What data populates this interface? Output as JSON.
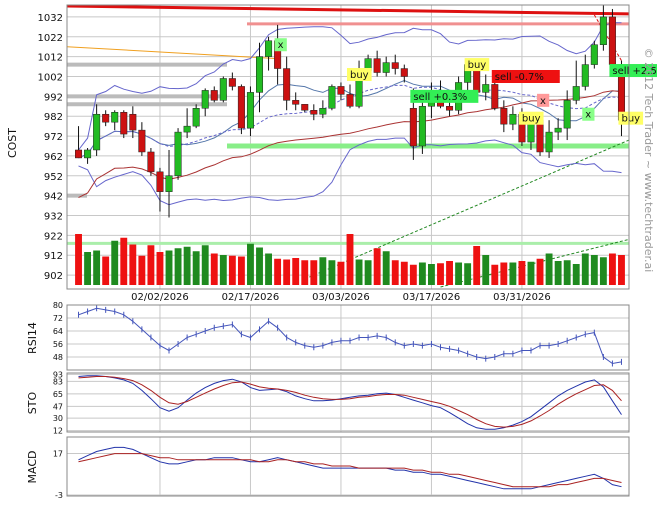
{
  "watermark": "© 2012 Tech Trader ~ www.techtrader.ai",
  "colors": {
    "up": "#22bb22",
    "down": "#cc1111",
    "grid": "#c8c8c8",
    "resistance": "#dd1111",
    "support": "#55dd55",
    "bollinger": "#6666cc",
    "ma_fast": "#5577aa",
    "ma_slow": "#aa3333",
    "trend_up": "#228822",
    "buy_bg": "#ffff66",
    "sell_bg_green": "#33ee55",
    "sell_bg_red": "#ee1111"
  },
  "chart_data": [
    {
      "panel": "price",
      "type": "candlestick",
      "ylabel": "COST",
      "yticks": [
        1032,
        1022,
        1012,
        1002,
        992,
        982,
        972,
        962,
        952,
        942,
        932,
        922,
        912,
        902
      ],
      "ylim": [
        895,
        1038
      ],
      "xticks": [
        "02/02/2026",
        "02/17/2026",
        "03/03/2026",
        "03/17/2026",
        "03/31/2026"
      ],
      "xtick_index": [
        9,
        19,
        29,
        39,
        49
      ],
      "n_bars": 61,
      "candles": [
        {
          "o": 965,
          "h": 977,
          "l": 961,
          "c": 961
        },
        {
          "o": 961,
          "h": 966,
          "l": 958,
          "c": 965
        },
        {
          "o": 965,
          "h": 988,
          "l": 962,
          "c": 983
        },
        {
          "o": 983,
          "h": 985,
          "l": 977,
          "c": 979
        },
        {
          "o": 979,
          "h": 985,
          "l": 975,
          "c": 984
        },
        {
          "o": 984,
          "h": 985,
          "l": 971,
          "c": 973
        },
        {
          "o": 983,
          "h": 987,
          "l": 971,
          "c": 975
        },
        {
          "o": 975,
          "h": 979,
          "l": 962,
          "c": 964
        },
        {
          "o": 964,
          "h": 966,
          "l": 952,
          "c": 954
        },
        {
          "o": 954,
          "h": 956,
          "l": 934,
          "c": 944
        },
        {
          "o": 944,
          "h": 965,
          "l": 931,
          "c": 952
        },
        {
          "o": 952,
          "h": 976,
          "l": 950,
          "c": 974
        },
        {
          "o": 974,
          "h": 986,
          "l": 971,
          "c": 977
        },
        {
          "o": 977,
          "h": 988,
          "l": 976,
          "c": 986
        },
        {
          "o": 986,
          "h": 996,
          "l": 982,
          "c": 995
        },
        {
          "o": 995,
          "h": 997,
          "l": 989,
          "c": 990
        },
        {
          "o": 990,
          "h": 1002,
          "l": 989,
          "c": 1001
        },
        {
          "o": 1001,
          "h": 1004,
          "l": 995,
          "c": 997
        },
        {
          "o": 997,
          "h": 998,
          "l": 973,
          "c": 976
        },
        {
          "o": 976,
          "h": 997,
          "l": 972,
          "c": 994
        },
        {
          "o": 994,
          "h": 1019,
          "l": 984,
          "c": 1012
        },
        {
          "o": 1012,
          "h": 1022,
          "l": 1005,
          "c": 1020
        },
        {
          "o": 1020,
          "h": 1028,
          "l": 998,
          "c": 1006
        },
        {
          "o": 1006,
          "h": 1012,
          "l": 985,
          "c": 990
        },
        {
          "o": 990,
          "h": 994,
          "l": 985,
          "c": 988
        },
        {
          "o": 988,
          "h": 988,
          "l": 984,
          "c": 985
        },
        {
          "o": 985,
          "h": 988,
          "l": 980,
          "c": 983
        },
        {
          "o": 983,
          "h": 990,
          "l": 981,
          "c": 986
        },
        {
          "o": 986,
          "h": 998,
          "l": 985,
          "c": 997
        },
        {
          "o": 997,
          "h": 999,
          "l": 990,
          "c": 993
        },
        {
          "o": 993,
          "h": 998,
          "l": 986,
          "c": 987
        },
        {
          "o": 987,
          "h": 1010,
          "l": 986,
          "c": 1005
        },
        {
          "o": 1005,
          "h": 1013,
          "l": 1000,
          "c": 1011
        },
        {
          "o": 1011,
          "h": 1015,
          "l": 1002,
          "c": 1004
        },
        {
          "o": 1004,
          "h": 1012,
          "l": 1002,
          "c": 1009
        },
        {
          "o": 1009,
          "h": 1013,
          "l": 1003,
          "c": 1006
        },
        {
          "o": 1006,
          "h": 1008,
          "l": 999,
          "c": 1002
        },
        {
          "o": 986,
          "h": 996,
          "l": 960,
          "c": 967
        },
        {
          "o": 967,
          "h": 990,
          "l": 963,
          "c": 987
        },
        {
          "o": 987,
          "h": 999,
          "l": 981,
          "c": 993
        },
        {
          "o": 993,
          "h": 1000,
          "l": 986,
          "c": 987
        },
        {
          "o": 987,
          "h": 992,
          "l": 982,
          "c": 985
        },
        {
          "o": 985,
          "h": 1002,
          "l": 983,
          "c": 999
        },
        {
          "o": 999,
          "h": 1011,
          "l": 993,
          "c": 1008
        },
        {
          "o": 1008,
          "h": 1009,
          "l": 993,
          "c": 994
        },
        {
          "o": 994,
          "h": 1003,
          "l": 990,
          "c": 998
        },
        {
          "o": 998,
          "h": 1001,
          "l": 985,
          "c": 986
        },
        {
          "o": 986,
          "h": 990,
          "l": 974,
          "c": 978
        },
        {
          "o": 978,
          "h": 987,
          "l": 975,
          "c": 983
        },
        {
          "o": 983,
          "h": 986,
          "l": 967,
          "c": 969
        },
        {
          "o": 969,
          "h": 984,
          "l": 965,
          "c": 980
        },
        {
          "o": 980,
          "h": 980,
          "l": 962,
          "c": 964
        },
        {
          "o": 964,
          "h": 980,
          "l": 961,
          "c": 974
        },
        {
          "o": 974,
          "h": 981,
          "l": 970,
          "c": 976
        },
        {
          "o": 976,
          "h": 995,
          "l": 970,
          "c": 990
        },
        {
          "o": 990,
          "h": 1010,
          "l": 988,
          "c": 997
        },
        {
          "o": 997,
          "h": 1013,
          "l": 995,
          "c": 1008
        },
        {
          "o": 1008,
          "h": 1020,
          "l": 1006,
          "c": 1018
        },
        {
          "o": 1018,
          "h": 1038,
          "l": 1015,
          "c": 1032
        },
        {
          "o": 1032,
          "h": 1036,
          "l": 1003,
          "c": 1008
        },
        {
          "o": 1008,
          "h": 1010,
          "l": 972,
          "c": 980
        }
      ],
      "volume_relative": [
        0.68,
        0.44,
        0.46,
        0.38,
        0.59,
        0.63,
        0.54,
        0.39,
        0.53,
        0.44,
        0.46,
        0.49,
        0.51,
        0.45,
        0.53,
        0.42,
        0.4,
        0.39,
        0.38,
        0.55,
        0.5,
        0.42,
        0.35,
        0.34,
        0.36,
        0.33,
        0.33,
        0.37,
        0.33,
        0.31,
        0.68,
        0.34,
        0.33,
        0.49,
        0.45,
        0.33,
        0.31,
        0.27,
        0.3,
        0.28,
        0.29,
        0.32,
        0.3,
        0.29,
        0.52,
        0.4,
        0.27,
        0.3,
        0.3,
        0.32,
        0.31,
        0.35,
        0.42,
        0.32,
        0.33,
        0.28,
        0.42,
        0.4,
        0.37,
        0.42,
        0.4
      ],
      "signals": [
        {
          "text": "x",
          "bar": 22,
          "price": 1018,
          "bg": "#88ff88"
        },
        {
          "text": "buy",
          "bar": 30,
          "price": 1003,
          "bg": "#ffff66"
        },
        {
          "text": "sell +0.3%",
          "bar": 37,
          "price": 992,
          "bg": "#33ee55"
        },
        {
          "text": "buy",
          "bar": 43,
          "price": 1008,
          "bg": "#ffff66"
        },
        {
          "text": "sell -0.7%",
          "bar": 46,
          "price": 1002,
          "bg": "#ee1111"
        },
        {
          "text": "buy",
          "bar": 49,
          "price": 981,
          "bg": "#ffff66"
        },
        {
          "text": "x",
          "bar": 51,
          "price": 990,
          "bg": "#ff9999"
        },
        {
          "text": "x",
          "bar": 56,
          "price": 983,
          "bg": "#88ff88"
        },
        {
          "text": "sell +2.5%",
          "bar": 59,
          "price": 1005,
          "bg": "#33ee55"
        },
        {
          "text": "buy",
          "bar": 60,
          "price": 981,
          "bg": "#ffff66"
        }
      ]
    },
    {
      "panel": "rsi",
      "type": "line",
      "ylabel": "RSI14",
      "yticks": [
        80,
        72,
        64,
        56,
        48
      ],
      "ylim": [
        40,
        80
      ],
      "values": [
        74,
        76,
        78,
        77,
        76,
        74,
        70,
        65,
        60,
        55,
        52,
        56,
        60,
        62,
        64,
        66,
        67,
        68,
        62,
        60,
        65,
        70,
        66,
        60,
        57,
        55,
        54,
        55,
        57,
        58,
        58,
        60,
        60,
        61,
        60,
        57,
        55,
        56,
        55,
        56,
        54,
        53,
        52,
        50,
        48,
        47,
        48,
        50,
        50,
        52,
        52,
        55,
        55,
        56,
        58,
        60,
        62,
        63,
        48,
        44,
        45
      ]
    },
    {
      "panel": "sto",
      "type": "line",
      "ylabel": "STO",
      "yticks": [
        93,
        83,
        65,
        47,
        30,
        12
      ],
      "ylim": [
        10,
        95
      ],
      "series": [
        {
          "values": [
            90,
            91,
            91,
            90,
            88,
            85,
            80,
            70,
            58,
            45,
            40,
            45,
            56,
            66,
            74,
            80,
            84,
            86,
            82,
            74,
            70,
            71,
            72,
            68,
            62,
            58,
            55,
            55,
            56,
            58,
            60,
            62,
            63,
            65,
            66,
            64,
            60,
            56,
            52,
            48,
            45,
            38,
            30,
            22,
            16,
            14,
            14,
            16,
            20,
            25,
            32,
            42,
            52,
            62,
            70,
            76,
            82,
            85,
            75,
            55,
            35
          ]
        },
        {
          "values": [
            88,
            89,
            90,
            90,
            89,
            87,
            84,
            78,
            70,
            60,
            52,
            50,
            54,
            60,
            66,
            72,
            77,
            81,
            82,
            79,
            75,
            73,
            72,
            70,
            67,
            63,
            60,
            58,
            57,
            57,
            58,
            60,
            61,
            63,
            64,
            64,
            63,
            60,
            57,
            54,
            51,
            47,
            41,
            35,
            28,
            22,
            18,
            17,
            18,
            21,
            26,
            33,
            41,
            50,
            58,
            65,
            71,
            77,
            78,
            70,
            55
          ]
        }
      ]
    },
    {
      "panel": "macd",
      "type": "line",
      "ylabel": "MACD",
      "yticks": [
        17,
        -3
      ],
      "ylim": [
        -3.5,
        25
      ],
      "series": [
        {
          "values": [
            14,
            16,
            18,
            19,
            20,
            20,
            19,
            17,
            15,
            13,
            12,
            12,
            13,
            14,
            14,
            15,
            15,
            15,
            14,
            13,
            13,
            14,
            15,
            14,
            13,
            12,
            11,
            10,
            10,
            10,
            10,
            10,
            10,
            10,
            10,
            9,
            9,
            8,
            8,
            7,
            7,
            6,
            5,
            4,
            3,
            2,
            1,
            0,
            0,
            0,
            0,
            1,
            2,
            3,
            4,
            5,
            6,
            7,
            5,
            2,
            1
          ]
        },
        {
          "values": [
            13,
            14,
            15,
            16,
            17,
            17,
            17,
            17,
            16,
            15,
            15,
            14,
            14,
            14,
            14,
            14,
            14,
            14,
            14,
            14,
            13,
            13,
            14,
            14,
            13,
            13,
            12,
            12,
            11,
            11,
            11,
            10,
            10,
            10,
            10,
            10,
            10,
            9,
            9,
            8,
            8,
            7,
            7,
            6,
            5,
            4,
            3,
            2,
            1,
            1,
            1,
            1,
            1,
            2,
            2,
            3,
            4,
            5,
            5,
            4,
            3
          ]
        }
      ]
    }
  ]
}
